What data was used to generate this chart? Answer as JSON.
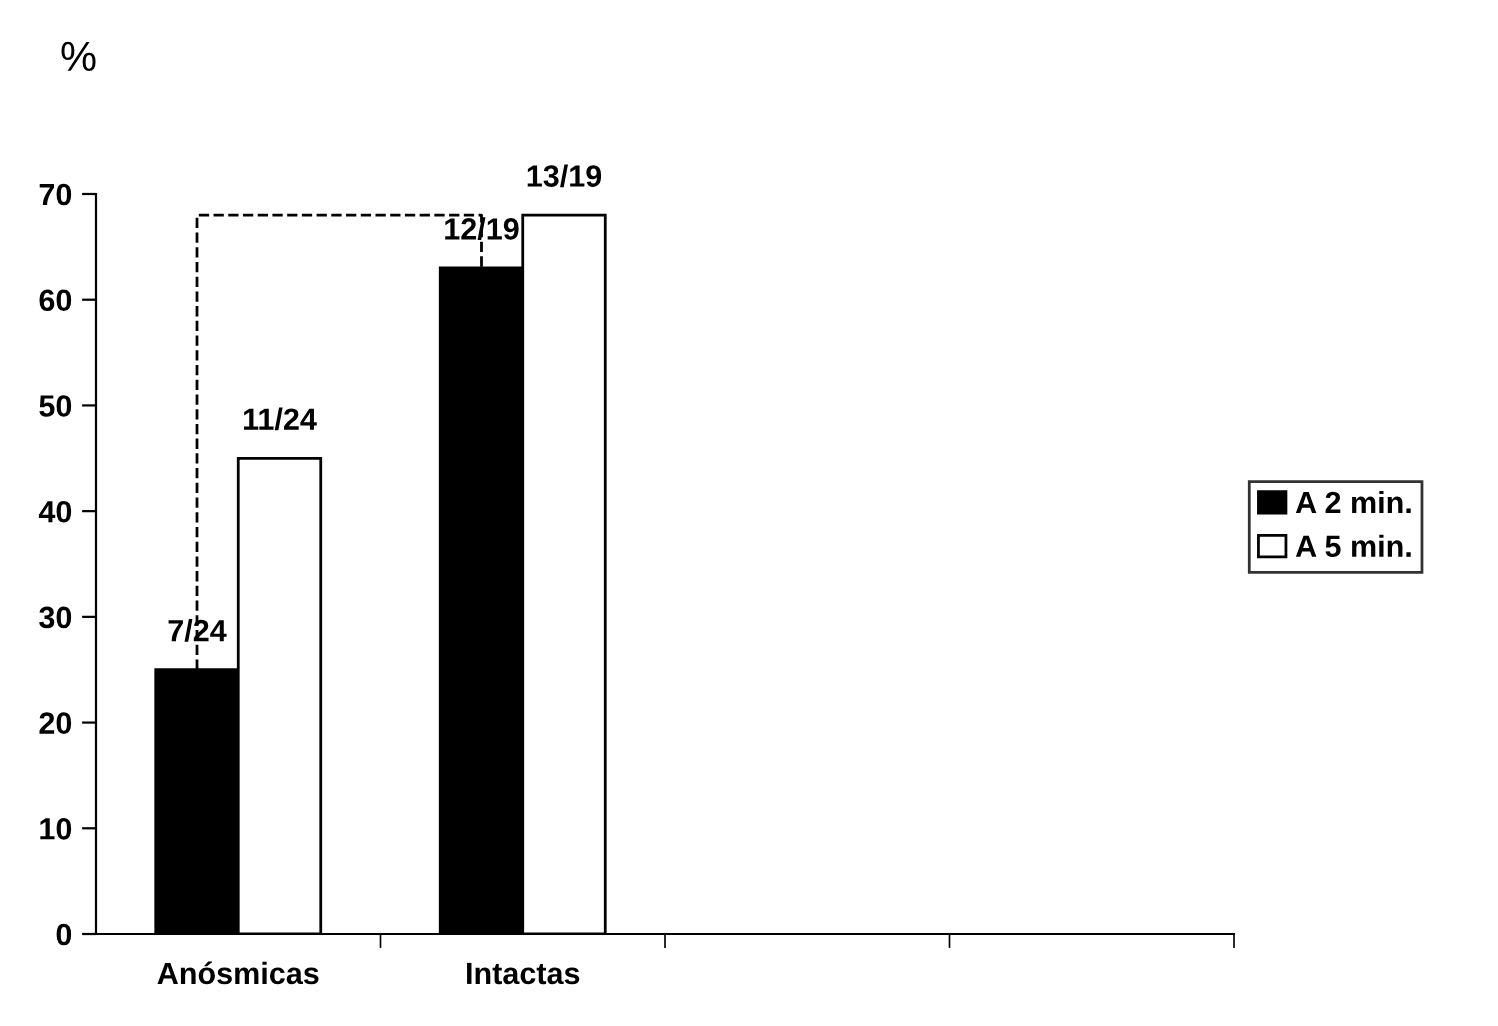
{
  "chart_data": {
    "type": "bar",
    "ylabel": "%",
    "categories": [
      "Anósmicas",
      "Intactas",
      null,
      null
    ],
    "series": [
      {
        "name": "A 2 min.",
        "color": "#000000",
        "values": [
          25,
          63,
          null,
          null
        ],
        "value_labels": [
          "7/24",
          "12/19",
          null,
          null
        ]
      },
      {
        "name": "A 5 min.",
        "color": "#ffffff",
        "values": [
          45,
          68,
          null,
          null
        ],
        "value_labels": [
          "11/24",
          "13/19",
          null,
          null
        ]
      }
    ],
    "ylim": [
      0,
      70
    ],
    "yticks": [
      0,
      10,
      20,
      30,
      40,
      50,
      60,
      70
    ],
    "grid": false,
    "legend": "right"
  }
}
